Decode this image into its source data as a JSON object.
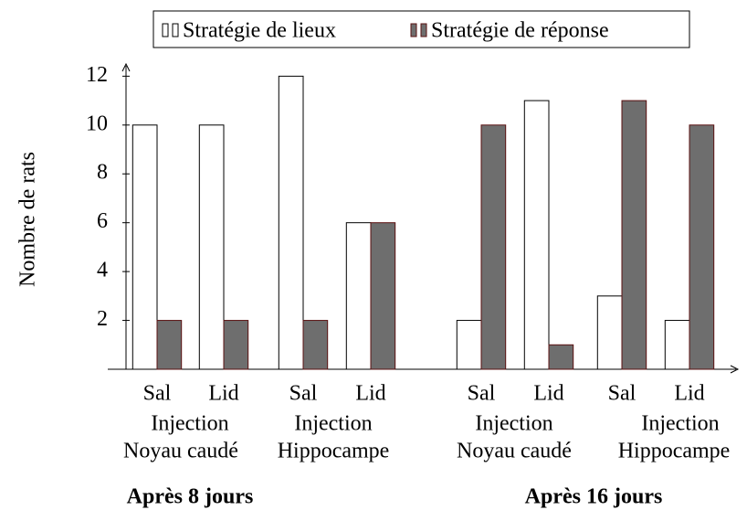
{
  "chart_data": {
    "type": "bar",
    "ylabel": "Nombre de rats",
    "categories": [
      "Sal",
      "Lid",
      "Sal",
      "Lid",
      "Sal",
      "Lid",
      "Sal",
      "Lid"
    ],
    "series": [
      {
        "name": "Stratégie de lieux",
        "color": "#ffffff",
        "values": [
          10,
          10,
          12,
          6,
          2,
          11,
          3,
          2
        ]
      },
      {
        "name": "Stratégie de réponse",
        "color": "#6e6e6e",
        "values": [
          2,
          2,
          2,
          6,
          10,
          1,
          11,
          10
        ]
      }
    ],
    "groups": [
      {
        "label": "Injection",
        "sublabel": "Noyau caudé"
      },
      {
        "label": "Injection",
        "sublabel": "Hippocampe"
      },
      {
        "label": "Injection",
        "sublabel": "Noyau caudé"
      },
      {
        "label": "Injection",
        "sublabel": "Hippocampe"
      }
    ],
    "periods": [
      "Après 8 jours",
      "Après 16 jours"
    ],
    "ylim": [
      0,
      12.5
    ],
    "yticks": [
      2,
      4,
      6,
      8,
      10,
      12
    ],
    "legend": "top"
  }
}
